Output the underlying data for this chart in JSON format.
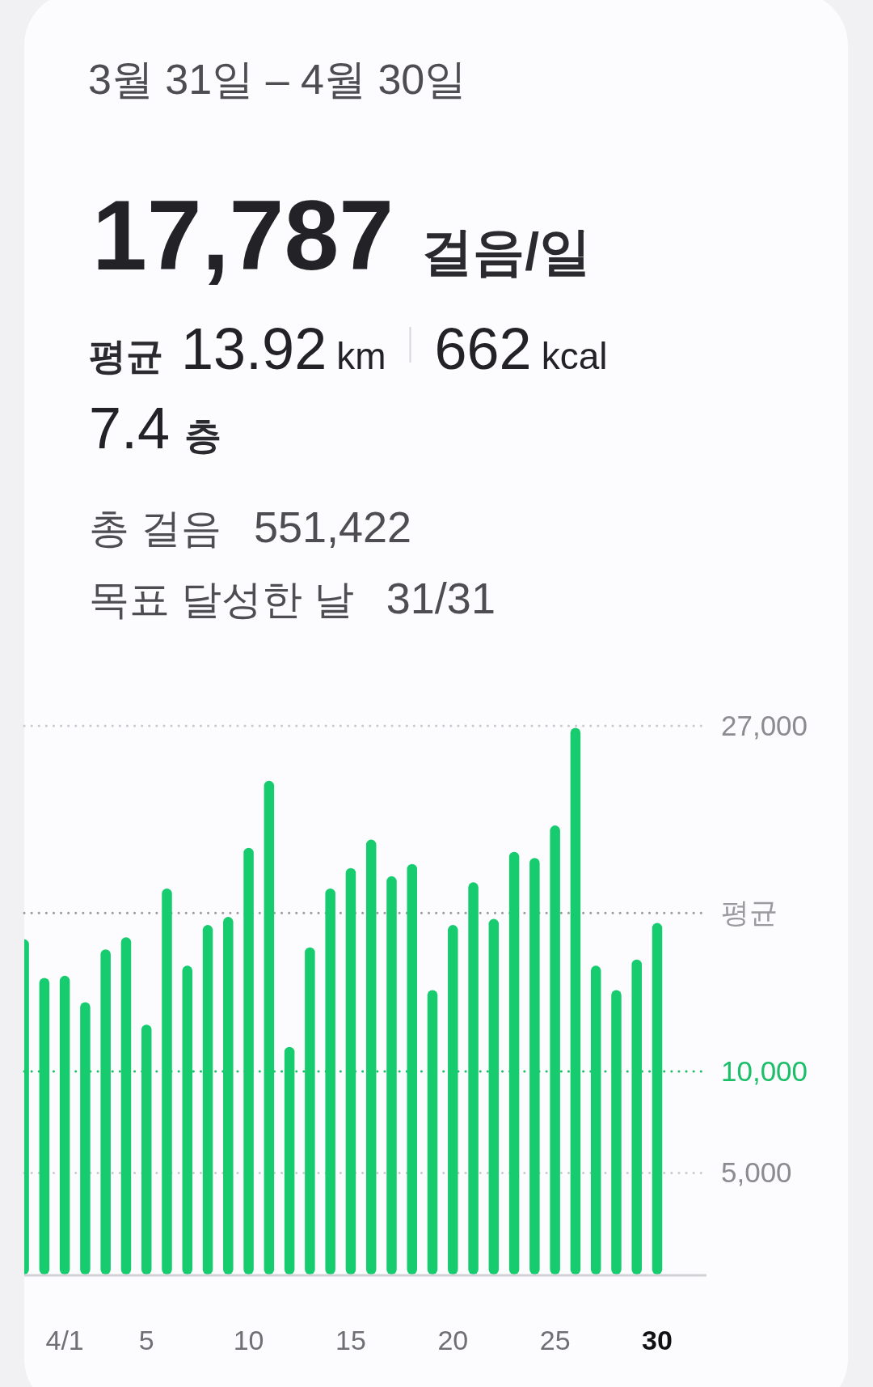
{
  "chart_data": {
    "type": "bar",
    "title": "3월 31일 – 4월 30일",
    "annotations": [
      "17,787",
      "걸음/일",
      "평균",
      "13.92",
      "km",
      "662",
      "kcal",
      "7.4",
      "층",
      "총 걸음",
      "551,422",
      "목표 달성한 날",
      "31/31"
    ],
    "categories": [
      null,
      null,
      "4/1",
      null,
      null,
      null,
      "5",
      null,
      null,
      null,
      null,
      "10",
      null,
      null,
      null,
      null,
      "15",
      null,
      null,
      null,
      null,
      "20",
      null,
      null,
      null,
      null,
      "25",
      null,
      null,
      null,
      null,
      "30"
    ],
    "values": [
      16500,
      14600,
      14700,
      13400,
      16000,
      16600,
      12300,
      19000,
      15200,
      17200,
      17600,
      21000,
      24300,
      11200,
      16100,
      19000,
      20000,
      21400,
      19600,
      20200,
      14000,
      17200,
      19300,
      17500,
      20800,
      20500,
      22100,
      26900,
      15200,
      14000,
      15500,
      17300
    ],
    "color": "#16cc6e",
    "ylim": [
      0,
      27000
    ],
    "yticks": [
      {
        "value": 5000,
        "label": "5,000"
      },
      {
        "value": 27000,
        "label": "27,000"
      }
    ],
    "grid": "y",
    "ref_lines": [
      {
        "axis": "y",
        "value": 17787,
        "label": "평균",
        "color": "#9a9a9f",
        "line_style": "dotted"
      },
      {
        "axis": "y",
        "value": 10000,
        "label": "10,000",
        "color": "#1cbf69",
        "line_style": "dotted"
      }
    ]
  }
}
